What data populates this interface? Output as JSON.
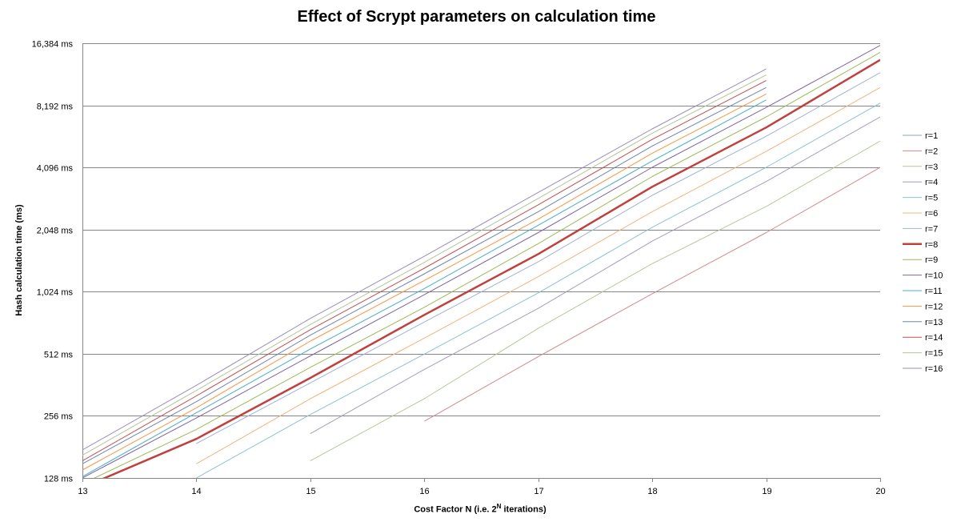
{
  "chart_data": {
    "type": "line",
    "title": "Effect of Scrypt parameters on calculation time",
    "xlabel_prefix": "Cost Factor N (i.e. 2",
    "xlabel_sup": "N",
    "xlabel_suffix": " iterations)",
    "ylabel": "Hash calculation  time (ms)",
    "y_scale": "log2",
    "ylim": [
      128,
      16384
    ],
    "xlim": [
      13,
      20
    ],
    "grid": true,
    "legend_position": "right",
    "x_ticks": [
      "13",
      "14",
      "15",
      "16",
      "17",
      "18",
      "19",
      "20"
    ],
    "y_ticks": [
      {
        "value": 128,
        "label": "128 ms"
      },
      {
        "value": 256,
        "label": "256 ms"
      },
      {
        "value": 512,
        "label": "512 ms"
      },
      {
        "value": 1024,
        "label": "1,024 ms"
      },
      {
        "value": 2048,
        "label": "2,048 ms"
      },
      {
        "value": 4096,
        "label": "4,096 ms"
      },
      {
        "value": 8192,
        "label": "8,192 ms"
      },
      {
        "value": 16384,
        "label": "16,384 ms"
      }
    ],
    "x": [
      13,
      14,
      15,
      16,
      17,
      18,
      19,
      20
    ],
    "series": [
      {
        "name": "r=1",
        "color": "#8ea5c8",
        "width": 1,
        "values": [
          null,
          null,
          null,
          null,
          null,
          null,
          null,
          null
        ]
      },
      {
        "name": "r=2",
        "color": "#d28a8a",
        "width": 1,
        "values": [
          null,
          null,
          null,
          241,
          496,
          1000,
          1980,
          4096
        ]
      },
      {
        "name": "r=3",
        "color": "#b6c99a",
        "width": 1,
        "values": [
          null,
          null,
          155,
          310,
          680,
          1400,
          2650,
          5500
        ]
      },
      {
        "name": "r=4",
        "color": "#a99bc1",
        "width": 1,
        "values": [
          null,
          null,
          210,
          430,
          850,
          1800,
          3500,
          7200
        ]
      },
      {
        "name": "r=5",
        "color": "#89c3d4",
        "width": 1,
        "values": [
          null,
          128,
          260,
          510,
          1010,
          2100,
          4100,
          8400
        ]
      },
      {
        "name": "r=6",
        "color": "#f2b47c",
        "width": 1,
        "values": [
          null,
          150,
          310,
          610,
          1210,
          2500,
          4900,
          10000
        ]
      },
      {
        "name": "r=7",
        "color": "#9fb3d6",
        "width": 1,
        "values": [
          null,
          188,
          370,
          730,
          1430,
          3000,
          5800,
          11800
        ]
      },
      {
        "name": "r=8",
        "color": "#c0403e",
        "width": 2.5,
        "values": [
          115,
          198,
          391,
          790,
          1558,
          3300,
          6400,
          13600
        ]
      },
      {
        "name": "r=9",
        "color": "#9bbb59",
        "width": 1,
        "values": [
          120,
          220,
          440,
          860,
          1750,
          3700,
          7200,
          14800
        ]
      },
      {
        "name": "r=10",
        "color": "#8064a2",
        "width": 1,
        "values": [
          128,
          250,
          500,
          990,
          1980,
          4100,
          8000,
          16000
        ]
      },
      {
        "name": "r=11",
        "color": "#4bacc6",
        "width": 1,
        "values": [
          130,
          265,
          540,
          1060,
          2150,
          4400,
          8700,
          null
        ]
      },
      {
        "name": "r=12",
        "color": "#f79646",
        "width": 1,
        "values": [
          140,
          280,
          590,
          1160,
          2300,
          4800,
          9300,
          null
        ]
      },
      {
        "name": "r=13",
        "color": "#6f85ad",
        "width": 1,
        "values": [
          150,
          300,
          630,
          1250,
          2500,
          5200,
          10000,
          null
        ]
      },
      {
        "name": "r=14",
        "color": "#c0504d",
        "width": 1,
        "values": [
          155,
          320,
          670,
          1330,
          2700,
          5600,
          10800,
          null
        ]
      },
      {
        "name": "r=15",
        "color": "#b4c596",
        "width": 1,
        "values": [
          165,
          340,
          710,
          1420,
          2900,
          6000,
          11500,
          null
        ]
      },
      {
        "name": "r=16",
        "color": "#9a8cbd",
        "width": 1,
        "values": [
          175,
          360,
          760,
          1520,
          3100,
          6300,
          12300,
          null
        ]
      }
    ]
  }
}
